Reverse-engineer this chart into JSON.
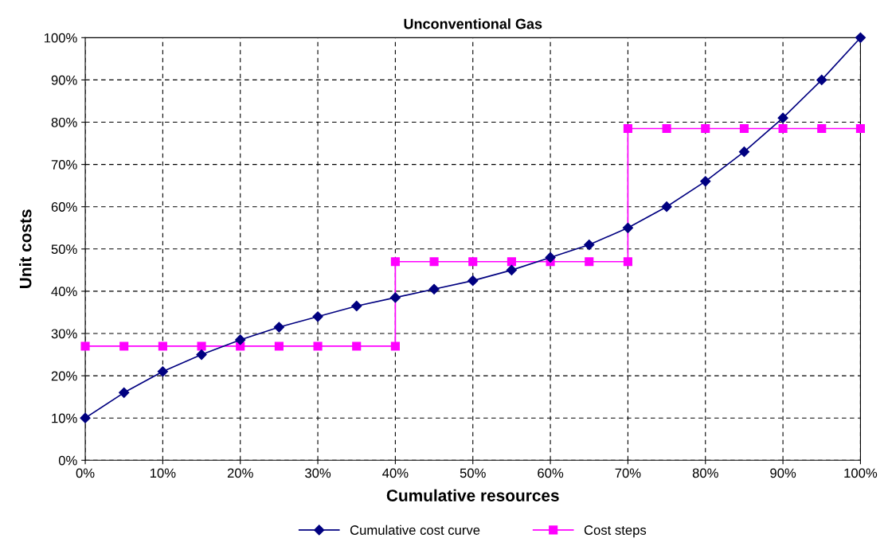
{
  "chart_data": {
    "type": "line",
    "title": "Unconventional Gas",
    "xlabel": "Cumulative resources",
    "ylabel": "Unit costs",
    "xlim": [
      0,
      100
    ],
    "ylim": [
      0,
      100
    ],
    "xticks": [
      {
        "value": 0,
        "label": "0%"
      },
      {
        "value": 10,
        "label": "10%"
      },
      {
        "value": 20,
        "label": "20%"
      },
      {
        "value": 30,
        "label": "30%"
      },
      {
        "value": 40,
        "label": "40%"
      },
      {
        "value": 50,
        "label": "50%"
      },
      {
        "value": 60,
        "label": "60%"
      },
      {
        "value": 70,
        "label": "70%"
      },
      {
        "value": 80,
        "label": "80%"
      },
      {
        "value": 90,
        "label": "90%"
      },
      {
        "value": 100,
        "label": "100%"
      }
    ],
    "yticks": [
      {
        "value": 0,
        "label": "0%"
      },
      {
        "value": 10,
        "label": "10%"
      },
      {
        "value": 20,
        "label": "20%"
      },
      {
        "value": 30,
        "label": "30%"
      },
      {
        "value": 40,
        "label": "40%"
      },
      {
        "value": 50,
        "label": "50%"
      },
      {
        "value": 60,
        "label": "60%"
      },
      {
        "value": 70,
        "label": "70%"
      },
      {
        "value": 80,
        "label": "80%"
      },
      {
        "value": 90,
        "label": "90%"
      },
      {
        "value": 100,
        "label": "100%"
      }
    ],
    "grid": true,
    "legend": "bottom",
    "line_style": "solid",
    "series": [
      {
        "name": "Cumulative cost curve",
        "color": "#000080",
        "marker": "diamond",
        "x": [
          0,
          5,
          10,
          15,
          20,
          25,
          30,
          35,
          40,
          45,
          50,
          55,
          60,
          65,
          70,
          75,
          80,
          85,
          90,
          95,
          100
        ],
        "values": [
          10,
          16,
          21,
          25,
          28.5,
          31.5,
          34,
          36.5,
          38.5,
          40.5,
          42.5,
          45,
          48,
          51,
          55,
          60,
          66,
          73,
          81,
          90,
          100
        ]
      },
      {
        "name": "Cost steps",
        "color": "#ff00ff",
        "marker": "square",
        "x": [
          0,
          5,
          10,
          15,
          20,
          25,
          30,
          35,
          40,
          40,
          45,
          50,
          55,
          60,
          65,
          70,
          70,
          75,
          80,
          85,
          90,
          95,
          100
        ],
        "values": [
          27,
          27,
          27,
          27,
          27,
          27,
          27,
          27,
          27,
          47,
          47,
          47,
          47,
          47,
          47,
          47,
          78.5,
          78.5,
          78.5,
          78.5,
          78.5,
          78.5,
          78.5
        ]
      }
    ]
  }
}
